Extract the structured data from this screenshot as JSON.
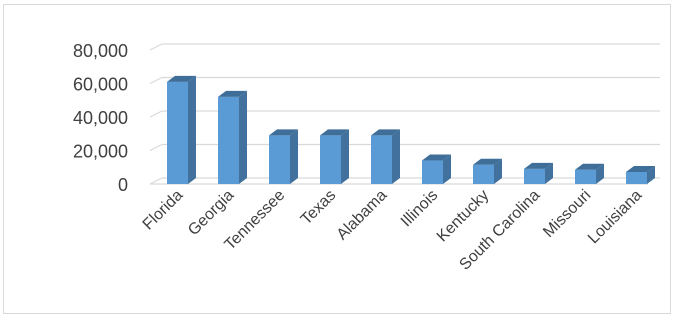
{
  "chart_data": {
    "type": "bar",
    "style": "3d-column",
    "categories": [
      "Florida",
      "Georgia",
      "Tennessee",
      "Texas",
      "Alabama",
      "Illinois",
      "Kentucky",
      "South Carolina",
      "Missouri",
      "Louisiana"
    ],
    "values": [
      61000,
      52000,
      29000,
      29000,
      29000,
      14000,
      11500,
      9000,
      8500,
      7200
    ],
    "ylim": [
      0,
      80000
    ],
    "yticks": [
      "0",
      "20,000",
      "40,000",
      "60,000",
      "80,000"
    ],
    "grid": true,
    "legend": "none",
    "colors": {
      "bar_front": "#5b9bd5",
      "bar_side": "#41719c",
      "bar_top": "#3f6e98",
      "grid": "#d9d9d9",
      "text": "#404040"
    }
  }
}
